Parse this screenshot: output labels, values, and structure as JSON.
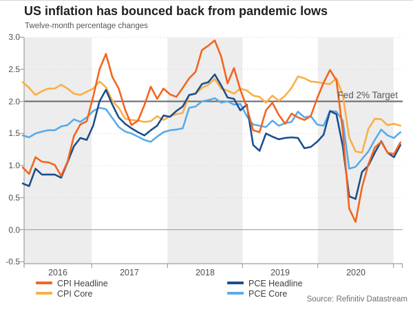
{
  "header": {
    "title": "US inflation has bounced back from pandemic lows",
    "subtitle": "Twelve-month percentage changes"
  },
  "source": "Source: Refinitiv Datastream",
  "chart_data": {
    "type": "line",
    "title": "US inflation has bounced back from pandemic lows",
    "subtitle": "Twelve-month percentage changes",
    "annotation": "Fed 2% Target",
    "fed_target_value": 2.0,
    "ylim": [
      -0.5,
      3.0
    ],
    "grid": "horizontal-dotted",
    "legend_position": "bottom",
    "x_tick_years": [
      "2016",
      "2017",
      "2018",
      "2019",
      "2020"
    ],
    "y_ticks": [
      "3.0",
      "2.5",
      "2.0",
      "1.5",
      "1.0",
      "0.5",
      "0.0",
      "-0.5"
    ],
    "x_note": "monthly points, Jan 2016 - Dec 2020",
    "series": [
      {
        "name": "CPI Headline",
        "color": "#F4641E",
        "values": [
          0.97,
          0.87,
          1.13,
          1.06,
          1.05,
          1.01,
          0.84,
          1.06,
          1.46,
          1.64,
          1.69,
          2.07,
          2.5,
          2.74,
          2.38,
          2.2,
          1.87,
          1.63,
          1.7,
          1.94,
          2.23,
          2.04,
          2.2,
          2.11,
          2.07,
          2.21,
          2.36,
          2.46,
          2.8,
          2.87,
          2.95,
          2.7,
          2.28,
          2.52,
          2.18,
          1.91,
          1.55,
          1.52,
          1.86,
          1.98,
          1.79,
          1.65,
          1.81,
          1.75,
          1.71,
          1.77,
          2.05,
          2.29,
          2.49,
          2.33,
          1.54,
          0.33,
          0.12,
          0.66,
          1.02,
          1.28,
          1.37,
          1.2,
          1.18,
          1.36
        ]
      },
      {
        "name": "CPI Core",
        "color": "#FBAE45",
        "values": [
          2.3,
          2.21,
          2.1,
          2.16,
          2.2,
          2.2,
          2.26,
          2.2,
          2.12,
          2.1,
          2.15,
          2.2,
          2.31,
          2.22,
          2.01,
          1.9,
          1.73,
          1.71,
          1.7,
          1.68,
          1.69,
          1.77,
          1.71,
          1.77,
          1.8,
          1.82,
          2.1,
          2.12,
          2.21,
          2.26,
          2.35,
          2.2,
          2.17,
          2.12,
          2.2,
          2.17,
          2.09,
          2.07,
          1.98,
          2.09,
          2.01,
          2.09,
          2.21,
          2.39,
          2.36,
          2.31,
          2.3,
          2.28,
          2.27,
          2.36,
          2.1,
          1.44,
          1.22,
          1.2,
          1.57,
          1.73,
          1.72,
          1.63,
          1.65,
          1.62
        ]
      },
      {
        "name": "PCE Headline",
        "color": "#1B4F8C",
        "values": [
          0.72,
          0.68,
          0.95,
          0.86,
          0.86,
          0.86,
          0.81,
          1.05,
          1.3,
          1.43,
          1.4,
          1.62,
          2.0,
          2.18,
          1.95,
          1.75,
          1.65,
          1.58,
          1.52,
          1.47,
          1.55,
          1.62,
          1.78,
          1.76,
          1.85,
          1.92,
          2.1,
          2.12,
          2.27,
          2.3,
          2.42,
          2.25,
          2.06,
          2.04,
          1.86,
          1.95,
          1.32,
          1.23,
          1.5,
          1.45,
          1.41,
          1.43,
          1.44,
          1.43,
          1.27,
          1.29,
          1.37,
          1.48,
          1.85,
          1.8,
          1.3,
          0.52,
          0.48,
          0.9,
          1.0,
          1.2,
          1.38,
          1.2,
          1.13,
          1.32
        ]
      },
      {
        "name": "PCE Core",
        "color": "#58ABE9",
        "values": [
          1.47,
          1.44,
          1.5,
          1.53,
          1.55,
          1.55,
          1.61,
          1.63,
          1.72,
          1.68,
          1.75,
          1.85,
          1.9,
          1.88,
          1.74,
          1.6,
          1.53,
          1.5,
          1.45,
          1.4,
          1.37,
          1.45,
          1.52,
          1.55,
          1.56,
          1.58,
          1.9,
          1.92,
          2.0,
          2.02,
          2.05,
          1.98,
          2.0,
          1.95,
          1.96,
          1.77,
          1.64,
          1.62,
          1.6,
          1.7,
          1.62,
          1.66,
          1.68,
          1.84,
          1.75,
          1.77,
          1.64,
          1.62,
          1.85,
          1.84,
          1.7,
          0.95,
          0.98,
          1.1,
          1.22,
          1.4,
          1.56,
          1.47,
          1.43,
          1.52
        ]
      }
    ]
  }
}
